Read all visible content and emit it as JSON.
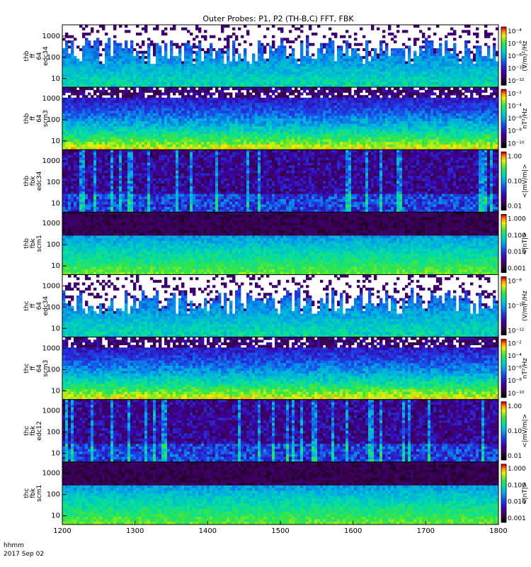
{
  "chart_data": {
    "type": "heatmap",
    "title": "Outer Probes: P1, P2 (TH-B,C) FFT, FBK",
    "x_label_unit": "hhmm",
    "x_label_date": "2017 Sep 02",
    "x_ticks": [
      "1200",
      "1300",
      "1400",
      "1500",
      "1600",
      "1700",
      "1800"
    ],
    "xlim": [
      1200,
      1800
    ],
    "colormap": "rainbow (black-purple-blue-cyan-green-yellow-red)",
    "panels": [
      {
        "probe": "thb",
        "instrument": "ff",
        "sub": "64",
        "sensor": "edc34",
        "yscale": "log",
        "yticks": [
          "10",
          "100",
          "1000"
        ],
        "cbar_label": "(V/m)²/Hz",
        "cbar_ticks": [
          "10⁻⁴",
          "10⁻⁶",
          "10⁻⁸",
          "10⁻¹⁰",
          "10⁻¹²"
        ],
        "style": "fft_e"
      },
      {
        "probe": "thb",
        "instrument": "ff",
        "sub": "64",
        "sensor": "scm3",
        "yscale": "log",
        "yticks": [
          "10",
          "100",
          "1000"
        ],
        "cbar_label": "nT²/Hz",
        "cbar_ticks": [
          "10⁻²",
          "10⁻⁴",
          "10⁻⁶",
          "10⁻⁸",
          "10⁻¹⁰"
        ],
        "style": "fft_b"
      },
      {
        "probe": "thb",
        "instrument": "fbk",
        "sub": "",
        "sensor": "edc34",
        "yscale": "log",
        "yticks": [
          "10",
          "100",
          "1000"
        ],
        "cbar_label": "<|mV/m|>",
        "cbar_ticks": [
          "1.00",
          "0.10",
          "0.01"
        ],
        "style": "fbk_e"
      },
      {
        "probe": "thb",
        "instrument": "fbk",
        "sub": "",
        "sensor": "scm1",
        "yscale": "log",
        "yticks": [
          "10",
          "100",
          "1000"
        ],
        "cbar_label": "<|nT|>",
        "cbar_ticks": [
          "1.000",
          "0.100",
          "0.010",
          "0.001"
        ],
        "style": "fbk_b"
      },
      {
        "probe": "thc",
        "instrument": "ff",
        "sub": "64",
        "sensor": "edc34",
        "yscale": "log",
        "yticks": [
          "10",
          "100",
          "1000"
        ],
        "cbar_label": "(V/m)²/Hz",
        "cbar_ticks": [
          "10⁻⁸",
          "10⁻¹⁰",
          "10⁻¹²"
        ],
        "style": "fft_e"
      },
      {
        "probe": "thc",
        "instrument": "ff",
        "sub": "64",
        "sensor": "scm3",
        "yscale": "log",
        "yticks": [
          "10",
          "100",
          "1000"
        ],
        "cbar_label": "nT²/Hz",
        "cbar_ticks": [
          "10⁻²",
          "10⁻⁴",
          "10⁻⁶",
          "10⁻⁸",
          "10⁻¹⁰"
        ],
        "style": "fft_b"
      },
      {
        "probe": "thc",
        "instrument": "fbk",
        "sub": "",
        "sensor": "edc12",
        "yscale": "log",
        "yticks": [
          "10",
          "100",
          "1000"
        ],
        "cbar_label": "<|mV/m|>",
        "cbar_ticks": [
          "1.00",
          "0.10",
          "0.01"
        ],
        "style": "fbk_e"
      },
      {
        "probe": "thc",
        "instrument": "fbk",
        "sub": "",
        "sensor": "scm1",
        "yscale": "log",
        "yticks": [
          "10",
          "100",
          "1000"
        ],
        "cbar_label": "<|nT|>",
        "cbar_ticks": [
          "1.000",
          "0.100",
          "0.010",
          "0.001"
        ],
        "style": "fbk_b"
      }
    ]
  }
}
